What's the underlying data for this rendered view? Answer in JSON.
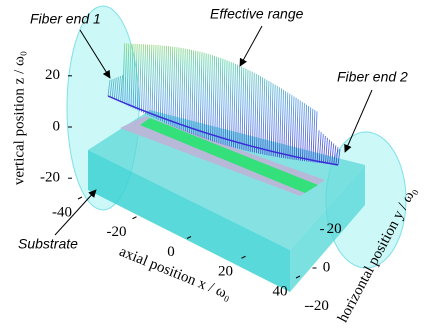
{
  "chart_data": {
    "type": "surface3d",
    "xlabel": "axial position x / ω₀",
    "ylabel": "horizontal position y / ω₀",
    "zlabel": "vertical position z / ω₀",
    "xlim": [
      -40,
      40
    ],
    "xticks": [
      -40,
      -20,
      0,
      20,
      40
    ],
    "ylim": [
      -25,
      25
    ],
    "yticks": [
      -20,
      0,
      20
    ],
    "zlim": [
      -25,
      25
    ],
    "zticks": [
      -20,
      0,
      20
    ],
    "annotations": [
      {
        "text": "Fiber end 1"
      },
      {
        "text": "Effective range"
      },
      {
        "text": "Fiber end 2"
      },
      {
        "text": "Substrate"
      }
    ]
  }
}
